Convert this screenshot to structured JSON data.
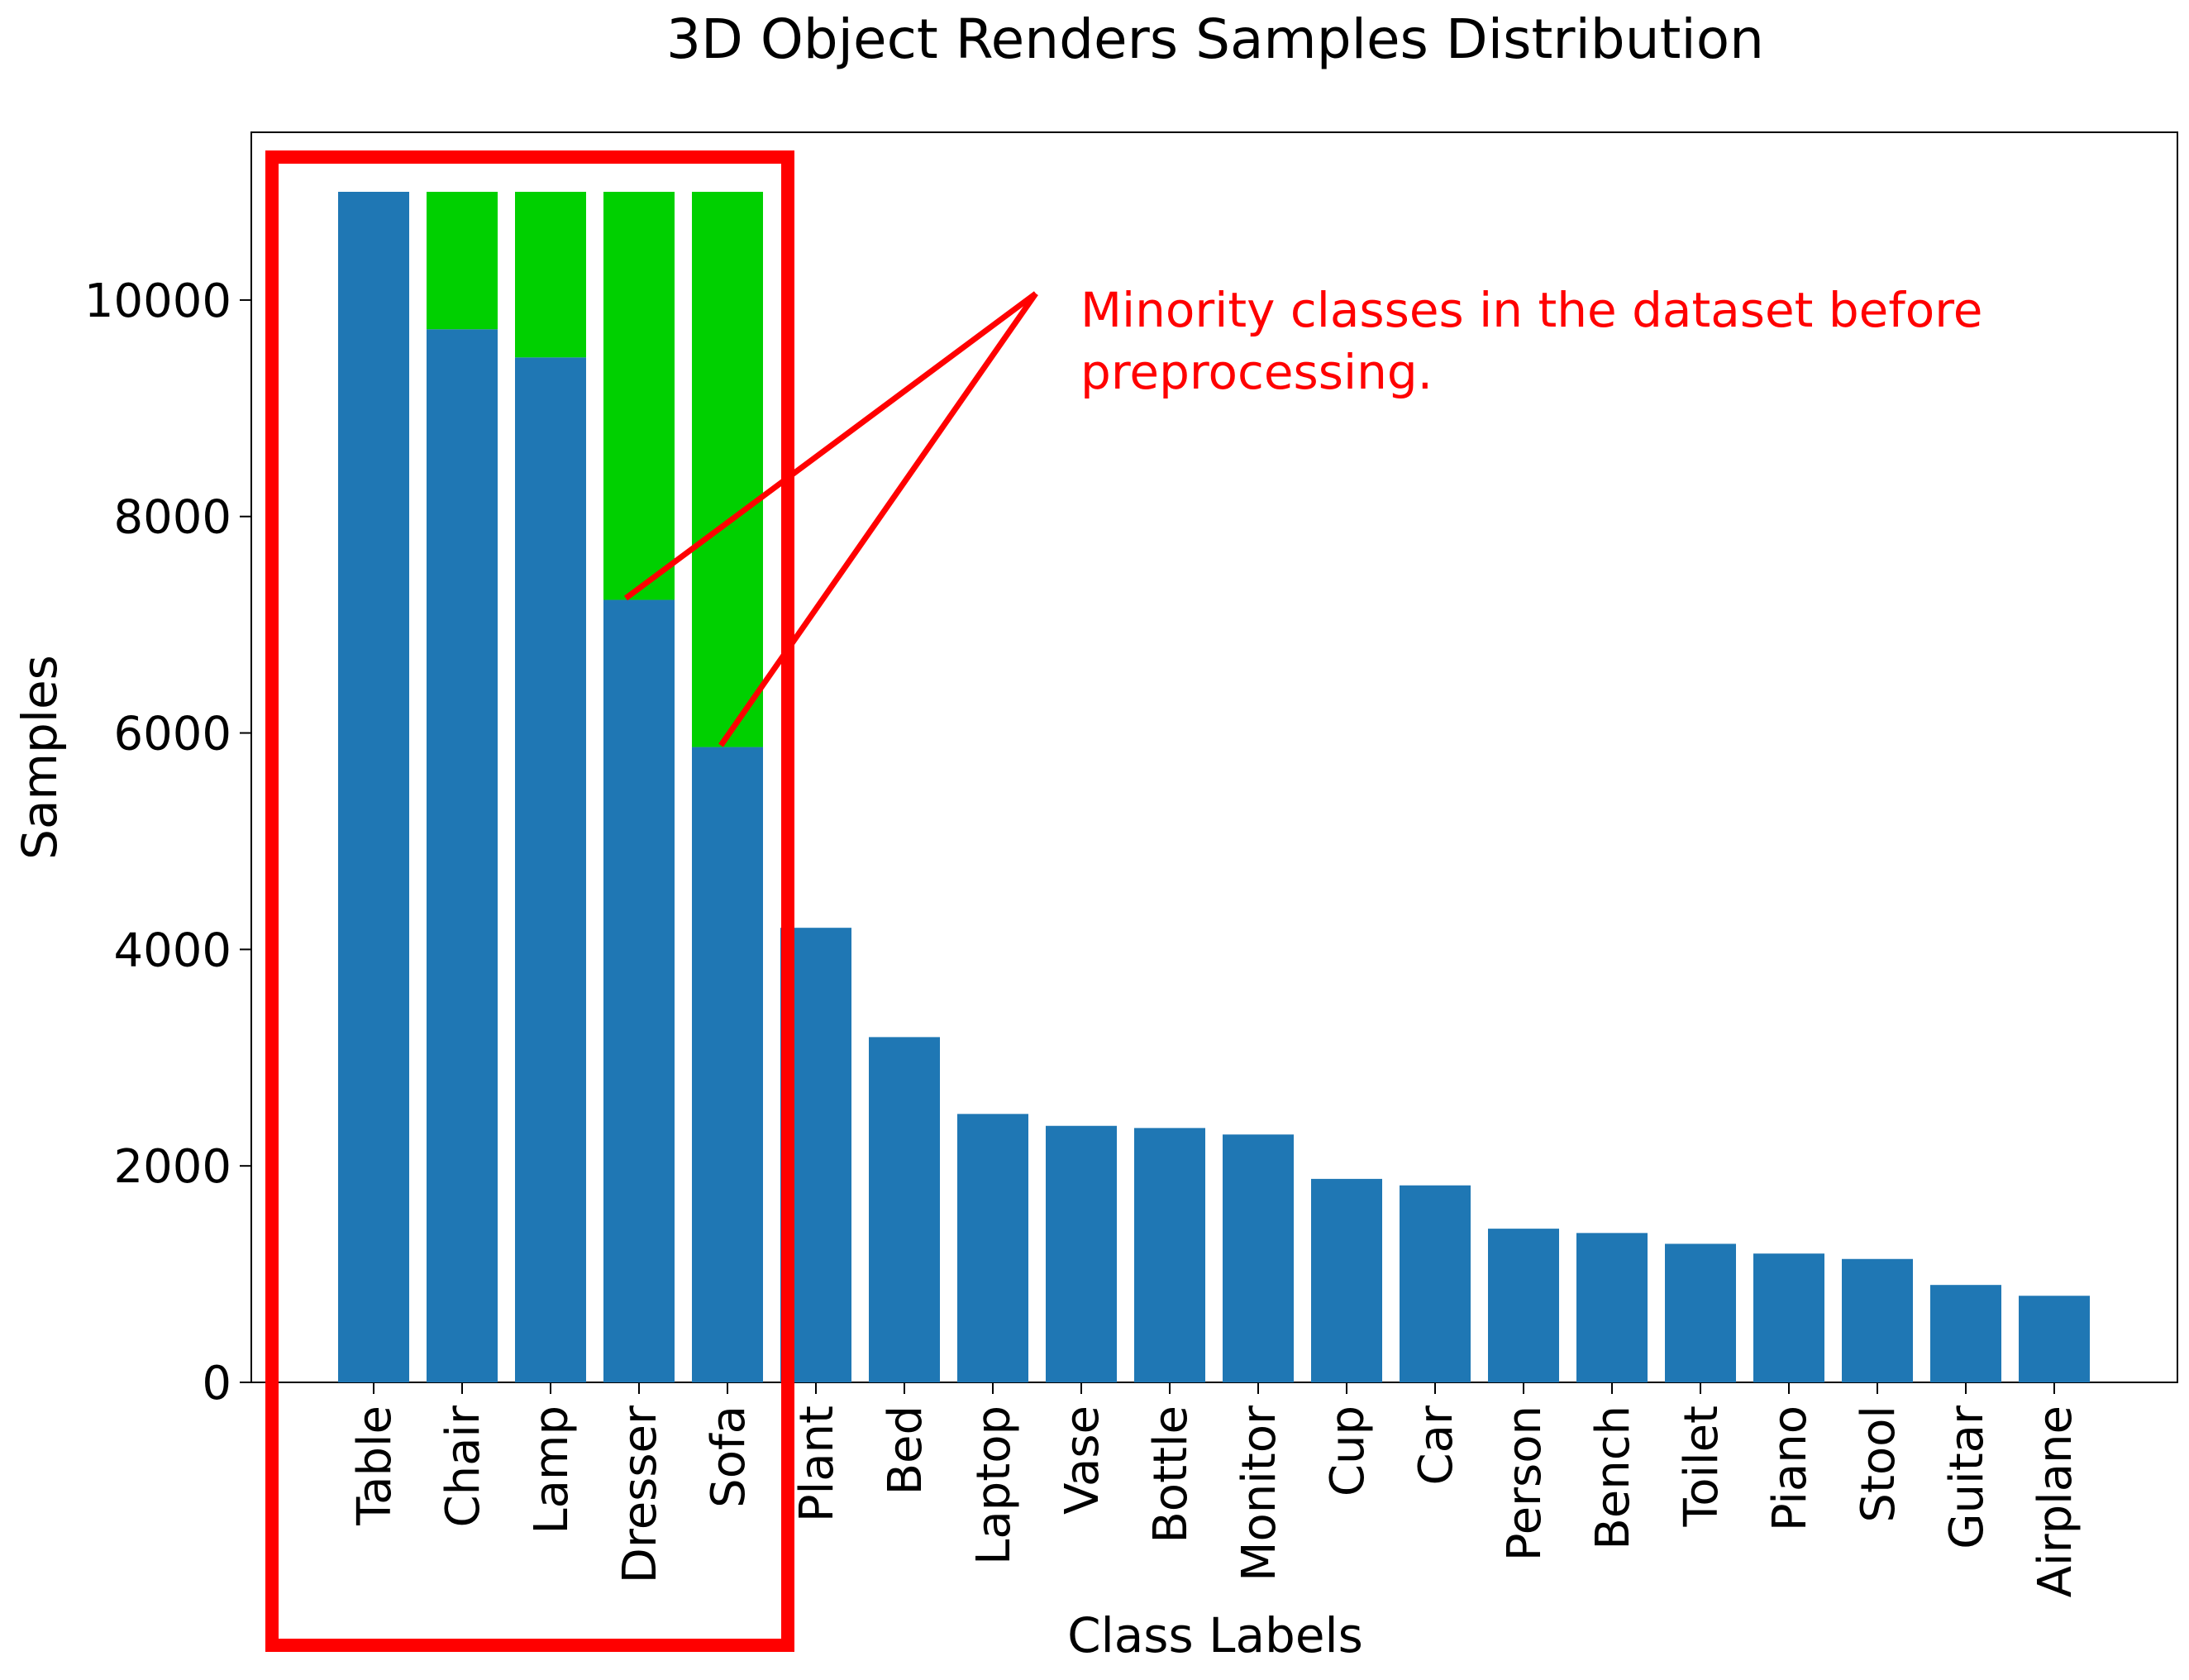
{
  "chart_data": {
    "type": "bar",
    "title": "3D Object Renders Samples Distribution",
    "xlabel": "Class Labels",
    "ylabel": "Samples",
    "ylim": [
      0,
      11550
    ],
    "yticks": [
      0,
      2000,
      4000,
      6000,
      8000,
      10000
    ],
    "grid": false,
    "categories": [
      "Table",
      "Chair",
      "Lamp",
      "Dresser",
      "Sofa",
      "Plant",
      "Bed",
      "Laptop",
      "Vase",
      "Bottle",
      "Monitor",
      "Cup",
      "Car",
      "Person",
      "Bench",
      "Toilet",
      "Piano",
      "Stool",
      "Guitar",
      "Airplane"
    ],
    "series": [
      {
        "color": "#1f77b4",
        "values": [
          11000,
          9730,
          9470,
          7230,
          5870,
          4200,
          3190,
          2480,
          2370,
          2350,
          2290,
          1880,
          1820,
          1420,
          1380,
          1280,
          1190,
          1140,
          900,
          800
        ]
      },
      {
        "color": "#00d000",
        "values": [
          0,
          1270,
          1530,
          3770,
          5130,
          0,
          0,
          0,
          0,
          0,
          0,
          0,
          0,
          0,
          0,
          0,
          0,
          0,
          0,
          0
        ]
      }
    ],
    "annotation": {
      "text_line1": "Minority classes in the dataset before",
      "text_line2": "preprocessing.",
      "color": "#ff0000",
      "highlighted_categories": [
        "Table",
        "Chair",
        "Lamp",
        "Dresser",
        "Sofa"
      ],
      "arrow_targets": [
        "Dresser",
        "Sofa"
      ]
    }
  }
}
